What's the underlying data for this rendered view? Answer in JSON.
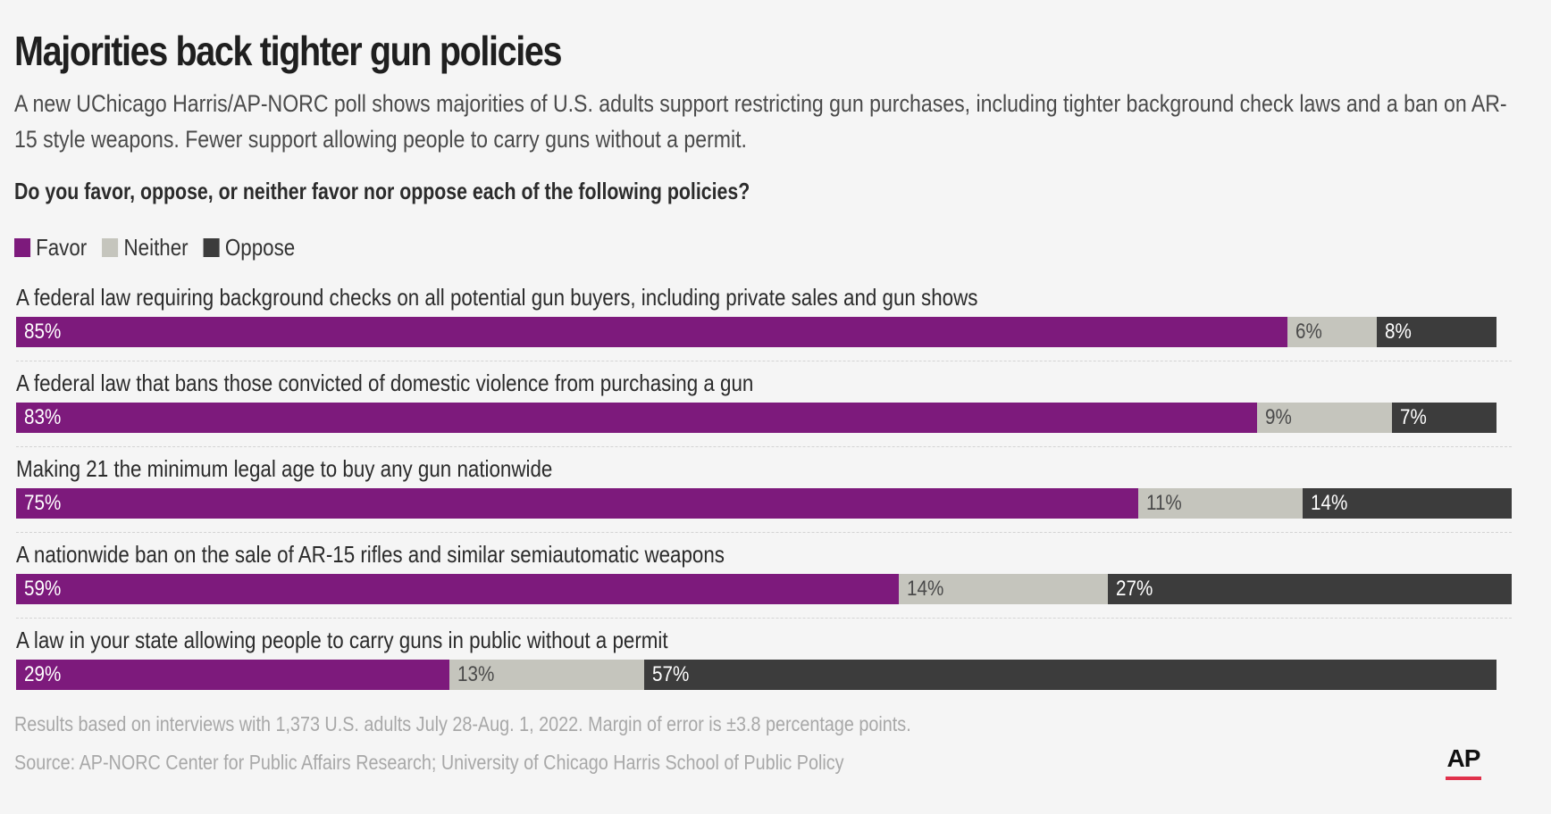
{
  "title": "Majorities back tighter gun policies",
  "subtitle": "A new UChicago Harris/AP-NORC poll shows majorities of U.S. adults support restricting gun purchases, including tighter background check laws and a ban on AR-15 style weapons. Fewer support allowing people to carry guns without a permit.",
  "question": "Do you favor, oppose, or neither favor nor oppose each of the following policies?",
  "colors": {
    "favor": "#7d1a7c",
    "neither": "#c5c5bd",
    "oppose": "#3c3c3c",
    "accent": "#e0314b"
  },
  "chart_data": {
    "type": "bar",
    "stacked": true,
    "orientation": "horizontal",
    "title": "Majorities back tighter gun policies",
    "legend": [
      "Favor",
      "Neither",
      "Oppose"
    ],
    "legend_position": "top-left",
    "categories": [
      "A federal law requiring background checks on all potential gun buyers, including private sales and gun shows",
      "A federal law that bans those convicted of domestic violence from purchasing a gun",
      "Making 21 the minimum legal age to buy any gun nationwide",
      "A nationwide ban on the sale of AR-15 rifles and similar semiautomatic weapons",
      "A law in your state allowing people to carry guns in public without a permit"
    ],
    "series": [
      {
        "name": "Favor",
        "values": [
          85,
          83,
          75,
          59,
          29
        ],
        "labels": [
          "85%",
          "83%",
          "75%",
          "59%",
          "29%"
        ]
      },
      {
        "name": "Neither",
        "values": [
          6,
          9,
          11,
          14,
          13
        ],
        "labels": [
          "6%",
          "9%",
          "11%",
          "14%",
          "13%"
        ]
      },
      {
        "name": "Oppose",
        "values": [
          8,
          7,
          14,
          27,
          57
        ],
        "labels": [
          "8%",
          "7%",
          "14%",
          "27%",
          "57%"
        ]
      }
    ],
    "xlim": [
      0,
      100
    ]
  },
  "footer": {
    "note": "Results based on interviews with 1,373 U.S. adults July 28-Aug. 1, 2022. Margin of error is ±3.8 percentage points.",
    "source": "Source: AP-NORC Center for Public Affairs Research; University of Chicago Harris School of Public Policy",
    "logo": "AP"
  }
}
